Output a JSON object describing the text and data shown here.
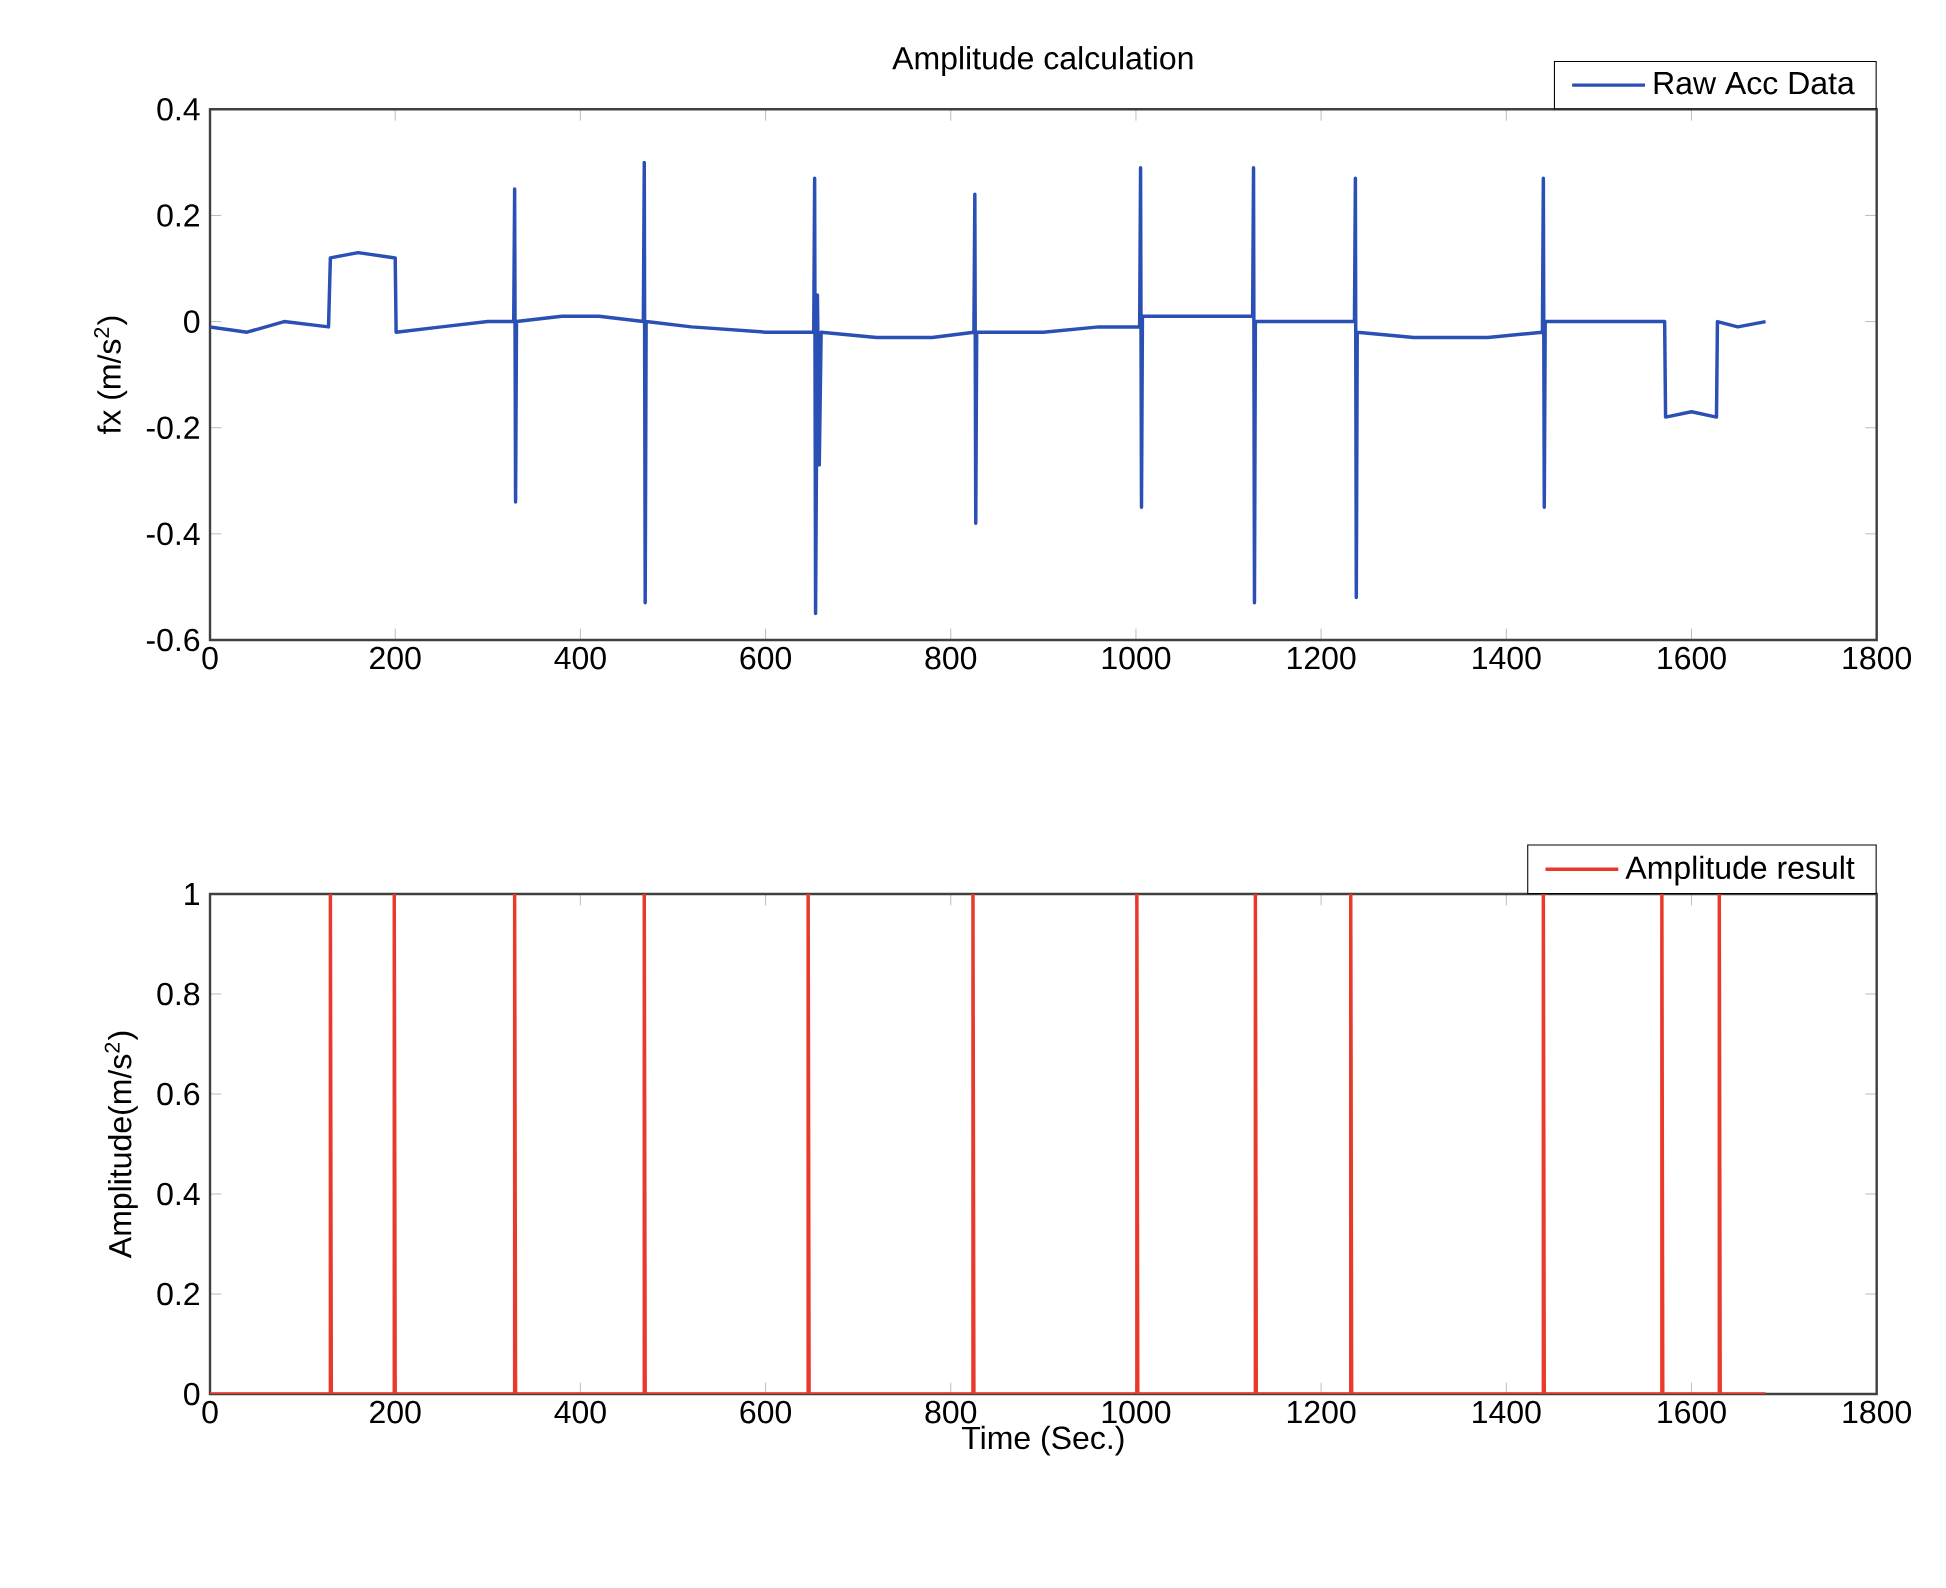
{
  "chart_data": [
    {
      "type": "line",
      "title": "Amplitude calculation",
      "ylabel": "fx (m/s$^{2}$)",
      "xlim": [
        0,
        1800
      ],
      "ylim": [
        -0.6,
        0.4
      ],
      "xticks": [
        0,
        200,
        400,
        600,
        800,
        1000,
        1200,
        1400,
        1600,
        1800
      ],
      "yticks": [
        -0.6,
        -0.4,
        -0.2,
        0,
        0.2,
        0.4
      ],
      "legend": "top right",
      "series": [
        {
          "name": "Raw Acc Data",
          "color": "#2a4fb5",
          "x": [
            0,
            40,
            80,
            128,
            130,
            160,
            200,
            201,
            250,
            300,
            328,
            329,
            330,
            331,
            380,
            420,
            468,
            469,
            470,
            471,
            520,
            600,
            652,
            653,
            654,
            656,
            658,
            660,
            720,
            780,
            825,
            826,
            827,
            828,
            900,
            960,
            1004,
            1005,
            1006,
            1007,
            1060,
            1126,
            1127,
            1128,
            1129,
            1180,
            1236,
            1237,
            1238,
            1239,
            1300,
            1380,
            1439,
            1440,
            1441,
            1442,
            1500,
            1571,
            1572,
            1600,
            1627,
            1628,
            1650,
            1680
          ],
          "values": [
            -0.01,
            -0.02,
            0.0,
            -0.01,
            0.12,
            0.13,
            0.12,
            -0.02,
            -0.01,
            0.0,
            0.0,
            0.25,
            -0.34,
            0.0,
            0.01,
            0.01,
            0.0,
            0.3,
            -0.53,
            0.0,
            -0.01,
            -0.02,
            -0.02,
            0.27,
            -0.55,
            0.05,
            -0.27,
            -0.02,
            -0.03,
            -0.03,
            -0.02,
            0.24,
            -0.38,
            -0.02,
            -0.02,
            -0.01,
            -0.01,
            0.29,
            -0.35,
            0.01,
            0.01,
            0.01,
            0.29,
            -0.53,
            0.0,
            0.0,
            0.0,
            0.27,
            -0.52,
            -0.02,
            -0.03,
            -0.03,
            -0.02,
            0.27,
            -0.35,
            0.0,
            0.0,
            0.0,
            -0.18,
            -0.17,
            -0.18,
            0.0,
            -0.01,
            0.0
          ]
        }
      ]
    },
    {
      "type": "line",
      "xlabel": "Time (Sec.)",
      "ylabel": "Amplitude(m/s$^{2}$)",
      "xlim": [
        0,
        1800
      ],
      "ylim": [
        0,
        1
      ],
      "xticks": [
        0,
        200,
        400,
        600,
        800,
        1000,
        1200,
        1400,
        1600,
        1800
      ],
      "yticks": [
        0,
        0.2,
        0.4,
        0.6,
        0.8,
        1
      ],
      "legend": "top right",
      "series": [
        {
          "name": "Amplitude result",
          "color": "#e8392a",
          "x": [
            0,
            130,
            130,
            131,
            199,
            199,
            200,
            329,
            329,
            330,
            469,
            469,
            470,
            646,
            646,
            647,
            824,
            824,
            825,
            1001,
            1001,
            1002,
            1129,
            1129,
            1130,
            1232,
            1232,
            1233,
            1440,
            1440,
            1441,
            1568,
            1568,
            1569,
            1630,
            1630,
            1631,
            1680
          ],
          "values": [
            0,
            0,
            1,
            0,
            0,
            1,
            0,
            0,
            1,
            0,
            0,
            1,
            0,
            0,
            1,
            0,
            0,
            1,
            0,
            0,
            1,
            0,
            0,
            1,
            0,
            0,
            1,
            0,
            0,
            1,
            0,
            0,
            1,
            0,
            0,
            1,
            0,
            0
          ]
        }
      ]
    }
  ]
}
